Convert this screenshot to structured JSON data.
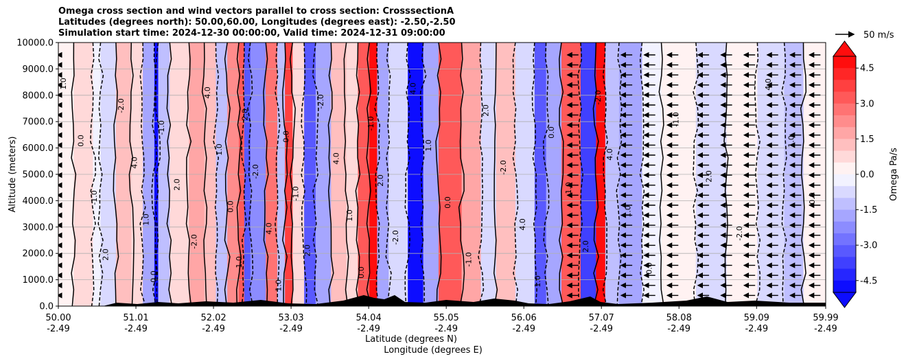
{
  "titles": [
    "Omega cross section and wind vectors parallel to cross section: CrosssectionA",
    "Latitudes (degrees north): 50.00,60.00, Longitudes (degrees east): -2.50,-2.50",
    "Simulation start time: 2024-12-30 00:00:00, Valid time: 2024-12-31 09:00:00"
  ],
  "quiver_key": "50 m/s",
  "chart_data": {
    "type": "heatmap",
    "subtype": "cross-section contourf with contour lines and wind vectors",
    "title": "Omega cross section and wind vectors parallel to cross section: CrosssectionA",
    "xlabel_lines": [
      "Latitude (degrees N)",
      "Longitude (degrees E)"
    ],
    "ylabel": "Altitude (meters)",
    "x_ticks": [
      {
        "lat": "50.00",
        "lon": "-2.49"
      },
      {
        "lat": "51.01",
        "lon": "-2.49"
      },
      {
        "lat": "52.02",
        "lon": "-2.49"
      },
      {
        "lat": "53.03",
        "lon": "-2.49"
      },
      {
        "lat": "54.04",
        "lon": "-2.49"
      },
      {
        "lat": "55.05",
        "lon": "-2.49"
      },
      {
        "lat": "56.06",
        "lon": "-2.49"
      },
      {
        "lat": "57.07",
        "lon": "-2.49"
      },
      {
        "lat": "58.08",
        "lon": "-2.49"
      },
      {
        "lat": "59.09",
        "lon": "-2.49"
      },
      {
        "lat": "59.99",
        "lon": "-2.49"
      }
    ],
    "xlim": [
      50.0,
      59.99
    ],
    "y_ticks": [
      "0.0",
      "1000.0",
      "2000.0",
      "3000.0",
      "4000.0",
      "5000.0",
      "6000.0",
      "7000.0",
      "8000.0",
      "9000.0",
      "10000.0"
    ],
    "ylim": [
      0,
      10000
    ],
    "grid": true,
    "colorbar": {
      "label": "Omega Pa/s",
      "ticks": [
        "-4.5",
        "-3.0",
        "-1.5",
        "0.0",
        "1.5",
        "3.0",
        "4.5"
      ],
      "range": [
        -5.0,
        5.0
      ],
      "extend": "both",
      "cmap": "bwr",
      "colors": {
        "low": "#0000ff",
        "mid": "#ffffff",
        "high": "#ff0000"
      }
    },
    "omega_bands": [
      {
        "lat_from": 50.0,
        "lat_to": 50.2,
        "omega": 0.3
      },
      {
        "lat_from": 50.2,
        "lat_to": 50.45,
        "omega": 0.6
      },
      {
        "lat_from": 50.45,
        "lat_to": 50.55,
        "omega": -0.3
      },
      {
        "lat_from": 50.55,
        "lat_to": 50.75,
        "omega": -0.8
      },
      {
        "lat_from": 50.75,
        "lat_to": 50.95,
        "omega": 1.2
      },
      {
        "lat_from": 50.95,
        "lat_to": 51.1,
        "omega": 0.6
      },
      {
        "lat_from": 51.1,
        "lat_to": 51.25,
        "omega": -1.6
      },
      {
        "lat_from": 51.25,
        "lat_to": 51.3,
        "omega": -5.0
      },
      {
        "lat_from": 51.3,
        "lat_to": 51.45,
        "omega": -1.2
      },
      {
        "lat_from": 51.45,
        "lat_to": 51.7,
        "omega": 0.8
      },
      {
        "lat_from": 51.7,
        "lat_to": 51.9,
        "omega": 1.6
      },
      {
        "lat_from": 51.9,
        "lat_to": 52.05,
        "omega": 1.0
      },
      {
        "lat_from": 52.05,
        "lat_to": 52.2,
        "omega": -1.4
      },
      {
        "lat_from": 52.2,
        "lat_to": 52.35,
        "omega": 2.0
      },
      {
        "lat_from": 52.35,
        "lat_to": 52.42,
        "omega": 3.0
      },
      {
        "lat_from": 52.42,
        "lat_to": 52.5,
        "omega": -3.5
      },
      {
        "lat_from": 52.5,
        "lat_to": 52.7,
        "omega": -2.2
      },
      {
        "lat_from": 52.7,
        "lat_to": 52.85,
        "omega": 2.8
      },
      {
        "lat_from": 52.85,
        "lat_to": 52.95,
        "omega": -1.5
      },
      {
        "lat_from": 52.95,
        "lat_to": 53.05,
        "omega": 3.8
      },
      {
        "lat_from": 53.05,
        "lat_to": 53.2,
        "omega": 0.8
      },
      {
        "lat_from": 53.2,
        "lat_to": 53.35,
        "omega": -3.2
      },
      {
        "lat_from": 53.35,
        "lat_to": 53.55,
        "omega": -1.8
      },
      {
        "lat_from": 53.55,
        "lat_to": 53.75,
        "omega": 1.4
      },
      {
        "lat_from": 53.75,
        "lat_to": 53.9,
        "omega": 0.6
      },
      {
        "lat_from": 53.9,
        "lat_to": 54.05,
        "omega": 3.2
      },
      {
        "lat_from": 54.05,
        "lat_to": 54.15,
        "omega": 4.8
      },
      {
        "lat_from": 54.15,
        "lat_to": 54.3,
        "omega": -2.0
      },
      {
        "lat_from": 54.3,
        "lat_to": 54.55,
        "omega": -1.0
      },
      {
        "lat_from": 54.55,
        "lat_to": 54.75,
        "omega": -4.8
      },
      {
        "lat_from": 54.75,
        "lat_to": 54.95,
        "omega": -1.8
      },
      {
        "lat_from": 54.95,
        "lat_to": 55.25,
        "omega": 3.0
      },
      {
        "lat_from": 55.25,
        "lat_to": 55.5,
        "omega": 1.8
      },
      {
        "lat_from": 55.5,
        "lat_to": 55.7,
        "omega": -1.0
      },
      {
        "lat_from": 55.7,
        "lat_to": 55.95,
        "omega": 1.2
      },
      {
        "lat_from": 55.95,
        "lat_to": 56.2,
        "omega": -1.0
      },
      {
        "lat_from": 56.2,
        "lat_to": 56.35,
        "omega": -3.5
      },
      {
        "lat_from": 56.35,
        "lat_to": 56.55,
        "omega": -2.0
      },
      {
        "lat_from": 56.55,
        "lat_to": 56.8,
        "omega": 3.2
      },
      {
        "lat_from": 56.8,
        "lat_to": 57.0,
        "omega": -3.8
      },
      {
        "lat_from": 57.0,
        "lat_to": 57.12,
        "omega": 4.8
      },
      {
        "lat_from": 57.12,
        "lat_to": 57.3,
        "omega": -1.2
      },
      {
        "lat_from": 57.3,
        "lat_to": 57.6,
        "omega": -1.6
      },
      {
        "lat_from": 57.6,
        "lat_to": 57.85,
        "omega": -0.5
      },
      {
        "lat_from": 57.85,
        "lat_to": 58.3,
        "omega": 0.2
      },
      {
        "lat_from": 58.3,
        "lat_to": 58.7,
        "omega": -0.6
      },
      {
        "lat_from": 58.7,
        "lat_to": 59.1,
        "omega": 0.4
      },
      {
        "lat_from": 59.1,
        "lat_to": 59.45,
        "omega": -0.8
      },
      {
        "lat_from": 59.45,
        "lat_to": 59.7,
        "omega": -1.5
      },
      {
        "lat_from": 59.7,
        "lat_to": 59.99,
        "omega": 0.3
      }
    ],
    "wind_vector_columns_lat": [
      50.0,
      56.7,
      57.4,
      57.7,
      58.0,
      58.4,
      58.7,
      59.0,
      59.3,
      59.6,
      59.85
    ],
    "contour_label_samples": [
      "1.0",
      "0.0",
      "-1.0",
      "2.0",
      "-2.0",
      "4.0"
    ]
  }
}
